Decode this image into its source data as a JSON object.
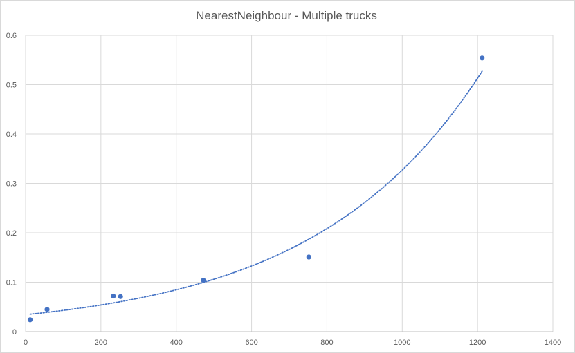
{
  "chart_data": {
    "type": "scatter",
    "title": "NearestNeighbour - Multiple trucks",
    "xlabel": "",
    "ylabel": "",
    "xlim": [
      0,
      1400
    ],
    "ylim": [
      0,
      0.6
    ],
    "xticks": [
      0,
      200,
      400,
      600,
      800,
      1000,
      1200,
      1400
    ],
    "yticks": [
      0,
      0.1,
      0.2,
      0.3,
      0.4,
      0.5,
      0.6
    ],
    "grid": true,
    "legend": "none",
    "series": [
      {
        "points": [
          {
            "x": 12,
            "y": 0.024
          },
          {
            "x": 57,
            "y": 0.045
          },
          {
            "x": 233,
            "y": 0.072
          },
          {
            "x": 252,
            "y": 0.071
          },
          {
            "x": 472,
            "y": 0.104
          },
          {
            "x": 752,
            "y": 0.151
          },
          {
            "x": 1212,
            "y": 0.554
          }
        ],
        "color": "#4472c4"
      }
    ],
    "trendline": {
      "type": "exponential",
      "a": 0.0344,
      "b": 0.002252,
      "x_range": [
        12,
        1212
      ],
      "style": "dotted",
      "color": "#4472c4"
    }
  }
}
